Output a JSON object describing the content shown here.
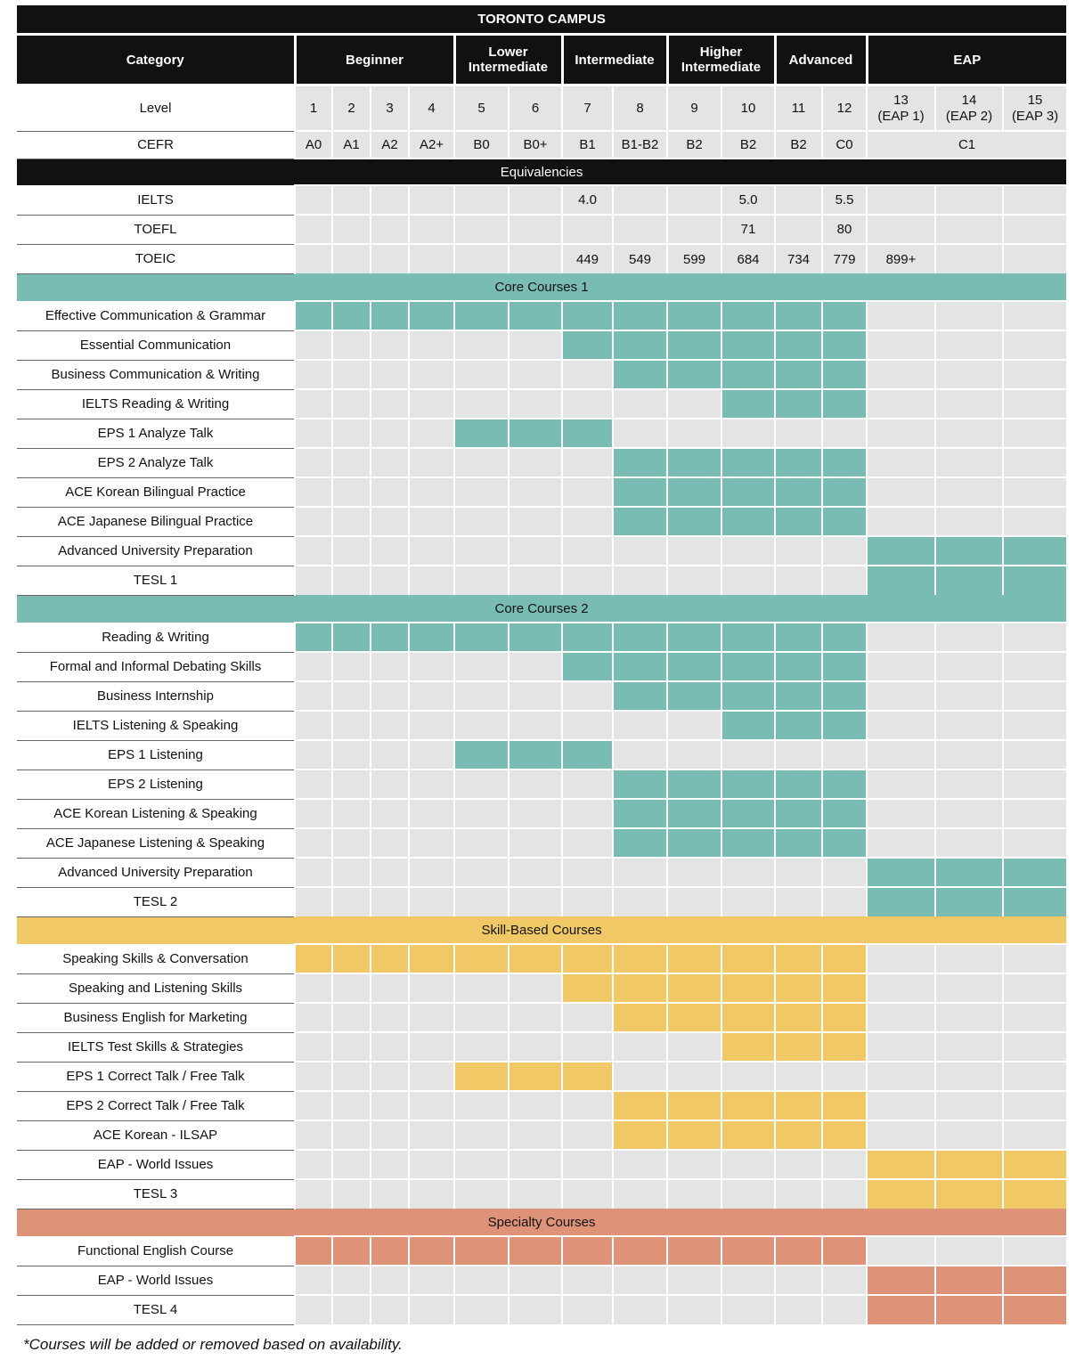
{
  "title": "TORONTO CAMPUS",
  "category_label": "Category",
  "bands": [
    {
      "label": "Beginner",
      "span": 4
    },
    {
      "label": "Lower Intermediate",
      "span": 2
    },
    {
      "label": "Intermediate",
      "span": 2
    },
    {
      "label": "Higher Intermediate",
      "span": 2
    },
    {
      "label": "Advanced",
      "span": 2
    },
    {
      "label": "EAP",
      "span": 3
    }
  ],
  "level_label": "Level",
  "levels": [
    "1",
    "2",
    "3",
    "4",
    "5",
    "6",
    "7",
    "8",
    "9",
    "10",
    "11",
    "12",
    "13\n(EAP 1)",
    "14\n(EAP 2)",
    "15\n(EAP 3)"
  ],
  "cefr_label": "CEFR",
  "cefr": [
    "A0",
    "A1",
    "A2",
    "A2+",
    "B0",
    "B0+",
    "B1",
    "B1-B2",
    "B2",
    "B2",
    "B2",
    "C0"
  ],
  "cefr_eap": "C1",
  "equivalencies_label": "Equivalencies",
  "equivalencies": [
    {
      "name": "IELTS",
      "values": [
        "",
        "",
        "",
        "",
        "",
        "",
        "4.0",
        "",
        "",
        "5.0",
        "",
        "5.5",
        "",
        "",
        ""
      ]
    },
    {
      "name": "TOEFL",
      "values": [
        "",
        "",
        "",
        "",
        "",
        "",
        "",
        "",
        "",
        "71",
        "",
        "80",
        "",
        "",
        ""
      ]
    },
    {
      "name": "TOEIC",
      "values": [
        "",
        "",
        "",
        "",
        "",
        "",
        "449",
        "549",
        "599",
        "684",
        "734",
        "779",
        "899+",
        "",
        ""
      ]
    }
  ],
  "sections": [
    {
      "title": "Core Courses 1",
      "color": "#79bcb3",
      "courses": [
        {
          "name": "Effective Communication & Grammar",
          "from": 1,
          "to": 12
        },
        {
          "name": "Essential Communication",
          "from": 7,
          "to": 12
        },
        {
          "name": "Business Communication & Writing",
          "from": 8,
          "to": 12
        },
        {
          "name": "IELTS Reading & Writing",
          "from": 10,
          "to": 12
        },
        {
          "name": "EPS 1 Analyze Talk",
          "from": 5,
          "to": 7
        },
        {
          "name": "EPS 2 Analyze Talk",
          "from": 8,
          "to": 12
        },
        {
          "name": "ACE Korean Bilingual Practice",
          "from": 8,
          "to": 12
        },
        {
          "name": "ACE Japanese Bilingual Practice",
          "from": 8,
          "to": 12
        },
        {
          "name": "Advanced University Preparation",
          "from": 13,
          "to": 15
        },
        {
          "name": "TESL 1",
          "from": 13,
          "to": 15
        }
      ]
    },
    {
      "title": "Core Courses 2",
      "color": "#79bcb3",
      "courses": [
        {
          "name": "Reading & Writing",
          "from": 1,
          "to": 12
        },
        {
          "name": "Formal and Informal Debating Skills",
          "from": 7,
          "to": 12
        },
        {
          "name": "Business Internship",
          "from": 8,
          "to": 12
        },
        {
          "name": "IELTS Listening & Speaking",
          "from": 10,
          "to": 12
        },
        {
          "name": "EPS 1 Listening",
          "from": 5,
          "to": 7
        },
        {
          "name": "EPS 2 Listening",
          "from": 8,
          "to": 12
        },
        {
          "name": "ACE Korean Listening & Speaking",
          "from": 8,
          "to": 12
        },
        {
          "name": "ACE Japanese Listening & Speaking",
          "from": 8,
          "to": 12
        },
        {
          "name": "Advanced University Preparation",
          "from": 13,
          "to": 15
        },
        {
          "name": "TESL 2",
          "from": 13,
          "to": 15
        }
      ]
    },
    {
      "title": "Skill-Based Courses",
      "color": "#f0c866",
      "courses": [
        {
          "name": "Speaking Skills & Conversation",
          "from": 1,
          "to": 12
        },
        {
          "name": "Speaking and Listening Skills",
          "from": 7,
          "to": 12
        },
        {
          "name": "Business English for Marketing",
          "from": 8,
          "to": 12
        },
        {
          "name": "IELTS Test Skills & Strategies",
          "from": 10,
          "to": 12
        },
        {
          "name": "EPS 1 Correct Talk / Free Talk",
          "from": 5,
          "to": 7
        },
        {
          "name": "EPS 2 Correct Talk / Free Talk",
          "from": 8,
          "to": 12
        },
        {
          "name": "ACE Korean - ILSAP",
          "from": 8,
          "to": 12
        },
        {
          "name": "EAP - World Issues",
          "from": 13,
          "to": 15
        },
        {
          "name": "TESL 3",
          "from": 13,
          "to": 15
        }
      ]
    },
    {
      "title": "Specialty Courses",
      "color": "#de9378",
      "courses": [
        {
          "name": "Functional English Course",
          "from": 1,
          "to": 12
        },
        {
          "name": "EAP - World Issues",
          "from": 13,
          "to": 15
        },
        {
          "name": "TESL 4",
          "from": 13,
          "to": 15
        }
      ]
    }
  ],
  "footnote": "*Courses will be added or removed based on availability."
}
